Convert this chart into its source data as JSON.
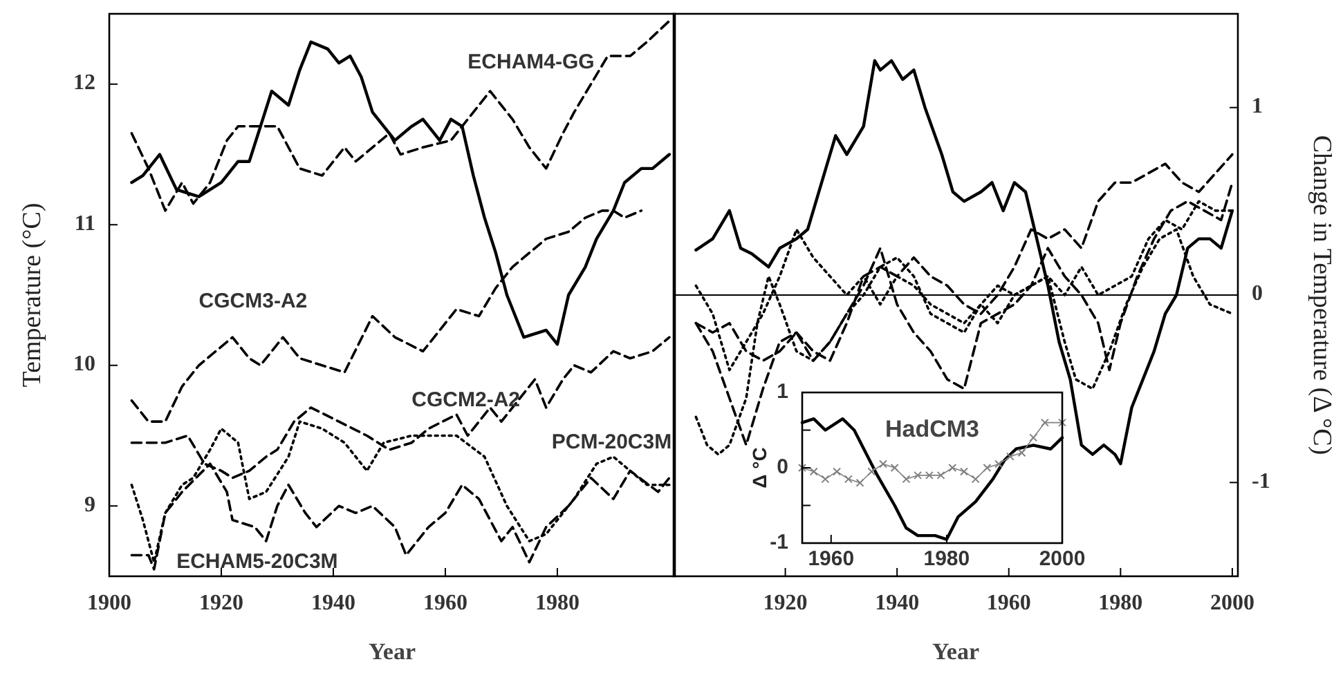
{
  "chart_data": [
    {
      "type": "line",
      "xlabel": "Year",
      "ylabel": "Temperature (°C)",
      "xlim": [
        1900,
        2001
      ],
      "xticks": [
        1900,
        1920,
        1940,
        1960,
        1980
      ],
      "ylim": [
        8.5,
        12.5
      ],
      "yticks": [
        9,
        10,
        11,
        12
      ],
      "series": [
        {
          "color": "#000000",
          "line_style": "solid",
          "x": [
            1904,
            1906,
            1909,
            1912,
            1916,
            1920,
            1923,
            1925,
            1927,
            1929,
            1932,
            1934,
            1936,
            1939,
            1941,
            1943,
            1945,
            1947,
            1951,
            1954,
            1956,
            1958,
            1959,
            1961,
            1963,
            1965,
            1967,
            1969,
            1971,
            1974,
            1978,
            1980,
            1982,
            1985,
            1987,
            1990,
            1992,
            1995,
            1997,
            2000
          ],
          "values": [
            11.3,
            11.35,
            11.5,
            11.25,
            11.2,
            11.3,
            11.45,
            11.45,
            11.7,
            11.95,
            11.85,
            12.1,
            12.3,
            12.25,
            12.15,
            12.2,
            12.05,
            11.8,
            11.6,
            11.7,
            11.75,
            11.65,
            11.6,
            11.75,
            11.7,
            11.35,
            11.05,
            10.8,
            10.5,
            10.2,
            10.25,
            10.15,
            10.5,
            10.7,
            10.9,
            11.1,
            11.3,
            11.4,
            11.4,
            11.5
          ]
        },
        {
          "name": "ECHAM4-GG",
          "color": "#000000",
          "line_style": "dashed",
          "x": [
            1904,
            1907,
            1910,
            1913,
            1915,
            1918,
            1921,
            1923,
            1926,
            1930,
            1934,
            1938,
            1942,
            1944,
            1947,
            1950,
            1952,
            1956,
            1961,
            1964,
            1968,
            1972,
            1975,
            1978,
            1981,
            1983,
            1986,
            1989,
            1993,
            1996,
            2000
          ],
          "values": [
            11.65,
            11.4,
            11.1,
            11.3,
            11.15,
            11.3,
            11.6,
            11.7,
            11.7,
            11.7,
            11.4,
            11.35,
            11.55,
            11.45,
            11.55,
            11.65,
            11.5,
            11.55,
            11.6,
            11.75,
            11.95,
            11.75,
            11.55,
            11.4,
            11.65,
            11.8,
            12.0,
            12.2,
            12.2,
            12.3,
            12.45
          ]
        },
        {
          "name": "CGCM3-A2",
          "color": "#000000",
          "line_style": "dashed",
          "x": [
            1904,
            1907,
            1910,
            1913,
            1916,
            1919,
            1922,
            1925,
            1927,
            1931,
            1934,
            1938,
            1942,
            1947,
            1951,
            1956,
            1959,
            1962,
            1966,
            1969,
            1972,
            1975,
            1978,
            1982,
            1985,
            1988,
            1990,
            1992,
            1995
          ],
          "values": [
            9.75,
            9.6,
            9.6,
            9.85,
            10.0,
            10.1,
            10.2,
            10.05,
            10.0,
            10.2,
            10.05,
            10.0,
            9.95,
            10.35,
            10.2,
            10.1,
            10.25,
            10.4,
            10.35,
            10.55,
            10.7,
            10.8,
            10.9,
            10.95,
            11.05,
            11.1,
            11.1,
            11.05,
            11.1
          ]
        },
        {
          "name": "CGCM2-A2",
          "color": "#000000",
          "line_style": "dashed",
          "x": [
            1904,
            1907,
            1910,
            1914,
            1917,
            1920,
            1922,
            1925,
            1928,
            1930,
            1933,
            1936,
            1941,
            1946,
            1950,
            1954,
            1957,
            1962,
            1964,
            1968,
            1970,
            1974,
            1976,
            1978,
            1981,
            1983,
            1986,
            1990,
            1993,
            1997,
            2000
          ],
          "values": [
            9.45,
            9.45,
            9.45,
            9.5,
            9.3,
            9.25,
            9.2,
            9.25,
            9.35,
            9.4,
            9.6,
            9.7,
            9.6,
            9.5,
            9.4,
            9.45,
            9.55,
            9.65,
            9.5,
            9.7,
            9.6,
            9.8,
            9.9,
            9.7,
            9.9,
            10.0,
            9.95,
            10.1,
            10.05,
            10.1,
            10.2
          ]
        },
        {
          "name": "PCM-20C3M",
          "color": "#000000",
          "line_style": "dotted",
          "x": [
            1904,
            1906,
            1908,
            1910,
            1913,
            1915,
            1918,
            1920,
            1923,
            1925,
            1928,
            1932,
            1934,
            1938,
            1942,
            1946,
            1949,
            1954,
            1958,
            1962,
            1967,
            1971,
            1975,
            1978,
            1980,
            1983,
            1987,
            1990,
            1993,
            1996,
            2000
          ],
          "values": [
            9.15,
            8.9,
            8.6,
            8.95,
            9.15,
            9.2,
            9.4,
            9.55,
            9.45,
            9.05,
            9.1,
            9.35,
            9.6,
            9.55,
            9.45,
            9.25,
            9.45,
            9.5,
            9.5,
            9.5,
            9.35,
            9.0,
            8.75,
            8.8,
            8.9,
            9.05,
            9.3,
            9.35,
            9.25,
            9.15,
            9.15
          ]
        },
        {
          "name": "ECHAM5-20C3M",
          "color": "#000000",
          "line_style": "dashed",
          "x": [
            1904,
            1907,
            1908,
            1910,
            1913,
            1918,
            1921,
            1922,
            1926,
            1928,
            1930,
            1932,
            1935,
            1937,
            1941,
            1944,
            1947,
            1951,
            1953,
            1957,
            1960,
            1963,
            1966,
            1970,
            1972,
            1975,
            1978,
            1982,
            1986,
            1990,
            1993,
            1998,
            2000
          ],
          "values": [
            8.65,
            8.65,
            8.55,
            8.95,
            9.1,
            9.3,
            9.1,
            8.9,
            8.85,
            8.75,
            9.0,
            9.15,
            8.95,
            8.85,
            9.0,
            8.95,
            9.0,
            8.85,
            8.65,
            8.85,
            8.95,
            9.15,
            9.05,
            8.75,
            8.85,
            8.6,
            8.85,
            9.0,
            9.2,
            9.05,
            9.25,
            9.1,
            9.2
          ]
        }
      ]
    },
    {
      "type": "line",
      "xlabel": "Year",
      "y2label": "Change in Temperature (Δ °C)",
      "xlim": [
        1900,
        2001
      ],
      "xticks": [
        {
          "value": 1900,
          "label": null
        },
        1920,
        1940,
        1960,
        1980,
        2000
      ],
      "y2lim": [
        -1.5,
        1.5
      ],
      "y2ticks": [
        -1,
        0,
        1
      ],
      "ref_lines": [
        {
          "axis": "y2",
          "value": 0,
          "color": "#000000",
          "line_style": "solid"
        }
      ],
      "series": [
        {
          "axis": "y2",
          "color": "#000000",
          "line_style": "solid",
          "x": [
            1904,
            1907,
            1910,
            1912,
            1914,
            1917,
            1919,
            1922,
            1924,
            1927,
            1929,
            1931,
            1934,
            1936,
            1937,
            1939,
            1941,
            1943,
            1945,
            1948,
            1950,
            1952,
            1955,
            1957,
            1959,
            1961,
            1963,
            1965,
            1967,
            1969,
            1971,
            1973,
            1975,
            1977,
            1979,
            1980,
            1982,
            1984,
            1986,
            1988,
            1990,
            1992,
            1994,
            1996,
            1998,
            2000
          ],
          "values": [
            0.24,
            0.3,
            0.45,
            0.25,
            0.22,
            0.15,
            0.25,
            0.3,
            0.35,
            0.65,
            0.85,
            0.75,
            0.9,
            1.25,
            1.2,
            1.25,
            1.15,
            1.2,
            1.0,
            0.75,
            0.55,
            0.5,
            0.55,
            0.6,
            0.45,
            0.6,
            0.55,
            0.3,
            0.05,
            -0.25,
            -0.45,
            -0.8,
            -0.85,
            -0.8,
            -0.85,
            -0.9,
            -0.6,
            -0.45,
            -0.3,
            -0.1,
            0.0,
            0.25,
            0.3,
            0.3,
            0.25,
            0.45
          ]
        },
        {
          "axis": "y2",
          "color": "#000000",
          "line_style": "dotted",
          "x": [
            1904,
            1906,
            1908,
            1910,
            1913,
            1915,
            1917,
            1919,
            1922,
            1925,
            1928,
            1931,
            1934,
            1937,
            1940,
            1943,
            1946,
            1949,
            1952,
            1955,
            1958,
            1961,
            1964,
            1967,
            1970,
            1972,
            1975,
            1978,
            1981,
            1984,
            1987,
            1990,
            1993,
            1996,
            2000
          ],
          "values": [
            -0.65,
            -0.8,
            -0.85,
            -0.8,
            -0.55,
            -0.15,
            0.1,
            -0.05,
            -0.3,
            -0.35,
            -0.25,
            -0.1,
            0.0,
            0.15,
            0.2,
            0.1,
            -0.1,
            -0.15,
            -0.2,
            -0.05,
            0.05,
            0.0,
            0.05,
            0.1,
            -0.25,
            -0.45,
            -0.5,
            -0.3,
            -0.05,
            0.15,
            0.3,
            0.35,
            0.1,
            -0.05,
            -0.1
          ]
        },
        {
          "axis": "y2",
          "color": "#000000",
          "line_style": "dashed",
          "x": [
            1904,
            1907,
            1910,
            1913,
            1916,
            1919,
            1922,
            1925,
            1928,
            1931,
            1934,
            1937,
            1940,
            1943,
            1946,
            1949,
            1952,
            1955,
            1958,
            1961,
            1964,
            1967,
            1970,
            1973,
            1976,
            1979,
            1982,
            1985,
            1988,
            1991,
            1994,
            1997,
            2000
          ],
          "values": [
            -0.15,
            -0.3,
            -0.55,
            -0.8,
            -0.5,
            -0.25,
            -0.2,
            -0.3,
            -0.35,
            -0.15,
            0.1,
            0.15,
            0.1,
            0.2,
            0.1,
            0.05,
            -0.05,
            -0.1,
            0.0,
            0.15,
            0.35,
            0.3,
            0.35,
            0.25,
            0.5,
            0.6,
            0.6,
            0.65,
            0.7,
            0.6,
            0.55,
            0.65,
            0.75
          ]
        },
        {
          "axis": "y2",
          "color": "#000000",
          "line_style": "dashed",
          "x": [
            1904,
            1907,
            1910,
            1913,
            1916,
            1919,
            1922,
            1925,
            1928,
            1931,
            1934,
            1937,
            1940,
            1943,
            1946,
            1949,
            1952,
            1955,
            1958,
            1961,
            1964,
            1967,
            1970,
            1973,
            1976,
            1978,
            1980,
            1983,
            1986,
            1989,
            1992,
            1995,
            1998,
            2000
          ],
          "values": [
            -0.15,
            -0.2,
            -0.15,
            -0.3,
            -0.35,
            -0.3,
            -0.2,
            -0.35,
            -0.25,
            -0.1,
            0.05,
            0.25,
            -0.05,
            -0.2,
            -0.3,
            -0.45,
            -0.5,
            -0.15,
            -0.1,
            -0.05,
            0.05,
            0.25,
            0.1,
            0.0,
            -0.15,
            -0.4,
            -0.15,
            0.1,
            0.3,
            0.45,
            0.5,
            0.45,
            0.4,
            0.6
          ]
        },
        {
          "axis": "y2",
          "color": "#000000",
          "line_style": "dotted",
          "x": [
            1904,
            1907,
            1910,
            1913,
            1916,
            1919,
            1922,
            1925,
            1928,
            1931,
            1934,
            1937,
            1940,
            1943,
            1946,
            1949,
            1952,
            1955,
            1958,
            1961,
            1964,
            1967,
            1970,
            1973,
            1976,
            1979,
            1982,
            1985,
            1988,
            1991,
            1994,
            1997,
            2000
          ],
          "values": [
            0.05,
            -0.1,
            -0.4,
            -0.25,
            -0.1,
            0.1,
            0.35,
            0.2,
            0.1,
            0.0,
            0.1,
            -0.05,
            0.1,
            0.05,
            -0.05,
            -0.1,
            -0.15,
            -0.05,
            -0.15,
            0.0,
            0.05,
            0.1,
            0.0,
            0.15,
            0.0,
            0.05,
            0.1,
            0.3,
            0.4,
            0.35,
            0.5,
            0.45,
            0.45
          ]
        }
      ]
    },
    {
      "type": "line",
      "title": "HadCM3",
      "ylabel": "Δ °C",
      "xlim": [
        1955,
        2000
      ],
      "xticks": [
        1960,
        1980,
        2000
      ],
      "ylim": [
        -1,
        1
      ],
      "yticks": [
        -1,
        {
          "value": -0.5,
          "label": null
        },
        0,
        {
          "value": 0.5,
          "label": null
        },
        1
      ],
      "series": [
        {
          "color": "#000000",
          "line_style": "solid",
          "x": [
            1955,
            1957,
            1959,
            1962,
            1964,
            1966,
            1968,
            1971,
            1973,
            1975,
            1978,
            1980,
            1982,
            1985,
            1988,
            1990,
            1992,
            1995,
            1998,
            2000
          ],
          "values": [
            0.6,
            0.65,
            0.5,
            0.65,
            0.5,
            0.2,
            -0.1,
            -0.5,
            -0.8,
            -0.9,
            -0.9,
            -0.95,
            -0.65,
            -0.45,
            -0.15,
            0.1,
            0.25,
            0.3,
            0.25,
            0.4
          ]
        },
        {
          "color": "#808080",
          "line_style": "solid",
          "marker": "cross",
          "x": [
            1955,
            1957,
            1959,
            1961,
            1963,
            1965,
            1967,
            1969,
            1971,
            1973,
            1975,
            1977,
            1979,
            1981,
            1983,
            1985,
            1987,
            1989,
            1991,
            1993,
            1995,
            1997,
            2000
          ],
          "values": [
            0.0,
            -0.05,
            -0.15,
            -0.05,
            -0.15,
            -0.2,
            -0.05,
            0.05,
            0.0,
            -0.15,
            -0.1,
            -0.1,
            -0.1,
            0.0,
            -0.05,
            -0.15,
            0.0,
            0.05,
            0.15,
            0.2,
            0.4,
            0.6,
            0.6
          ]
        }
      ]
    }
  ]
}
